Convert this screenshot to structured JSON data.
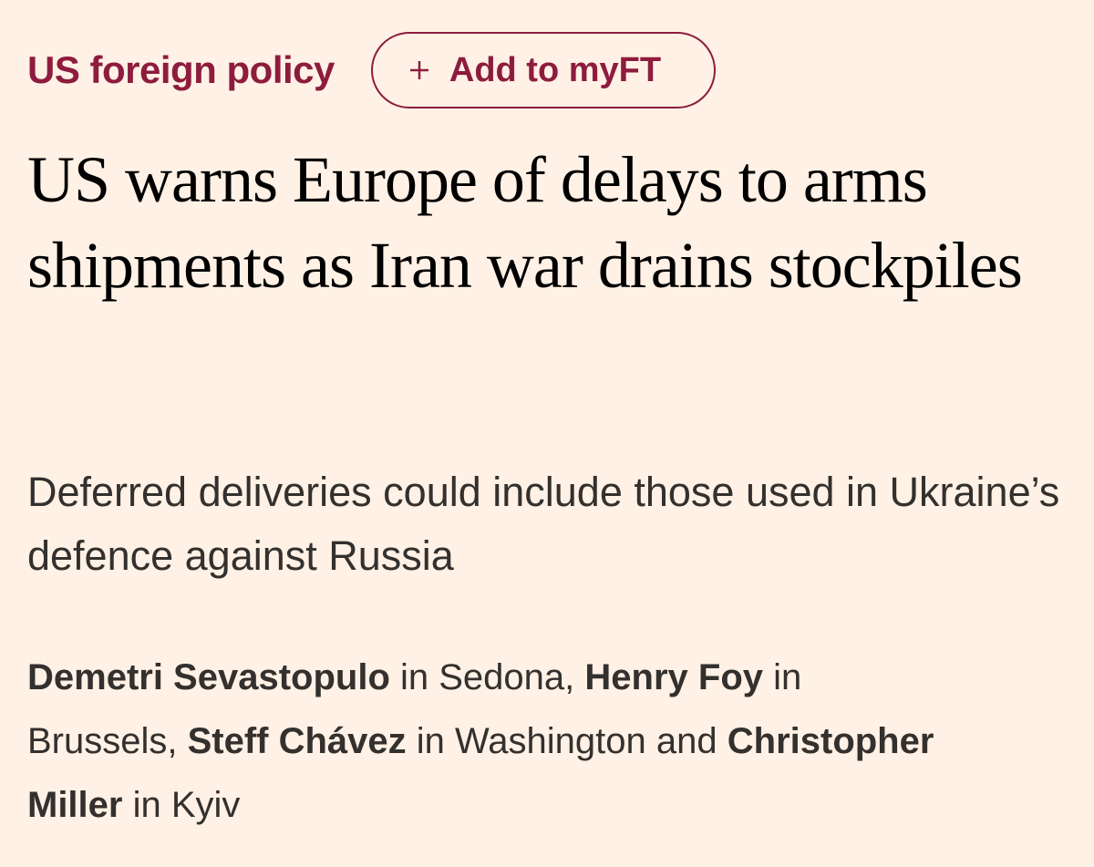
{
  "topic": "US foreign policy",
  "follow_button": {
    "label": "Add to myFT"
  },
  "headline": "US warns Europe of delays to arms shipments as Iran war drains stockpiles",
  "standfirst": "Deferred deliveries could include those used in Ukraine’s defence against Russia",
  "byline": {
    "segments": [
      {
        "text": "Demetri Sevastopulo",
        "bold": true
      },
      {
        "text": " in Sedona, ",
        "bold": false
      },
      {
        "text": "Henry Foy",
        "bold": true
      },
      {
        "text": " in Brussels, ",
        "bold": false
      },
      {
        "text": "Steff Chávez",
        "bold": true
      },
      {
        "text": " in Washington and ",
        "bold": false
      },
      {
        "text": "Christopher Miller",
        "bold": true
      },
      {
        "text": " in Kyiv",
        "bold": false
      }
    ]
  }
}
